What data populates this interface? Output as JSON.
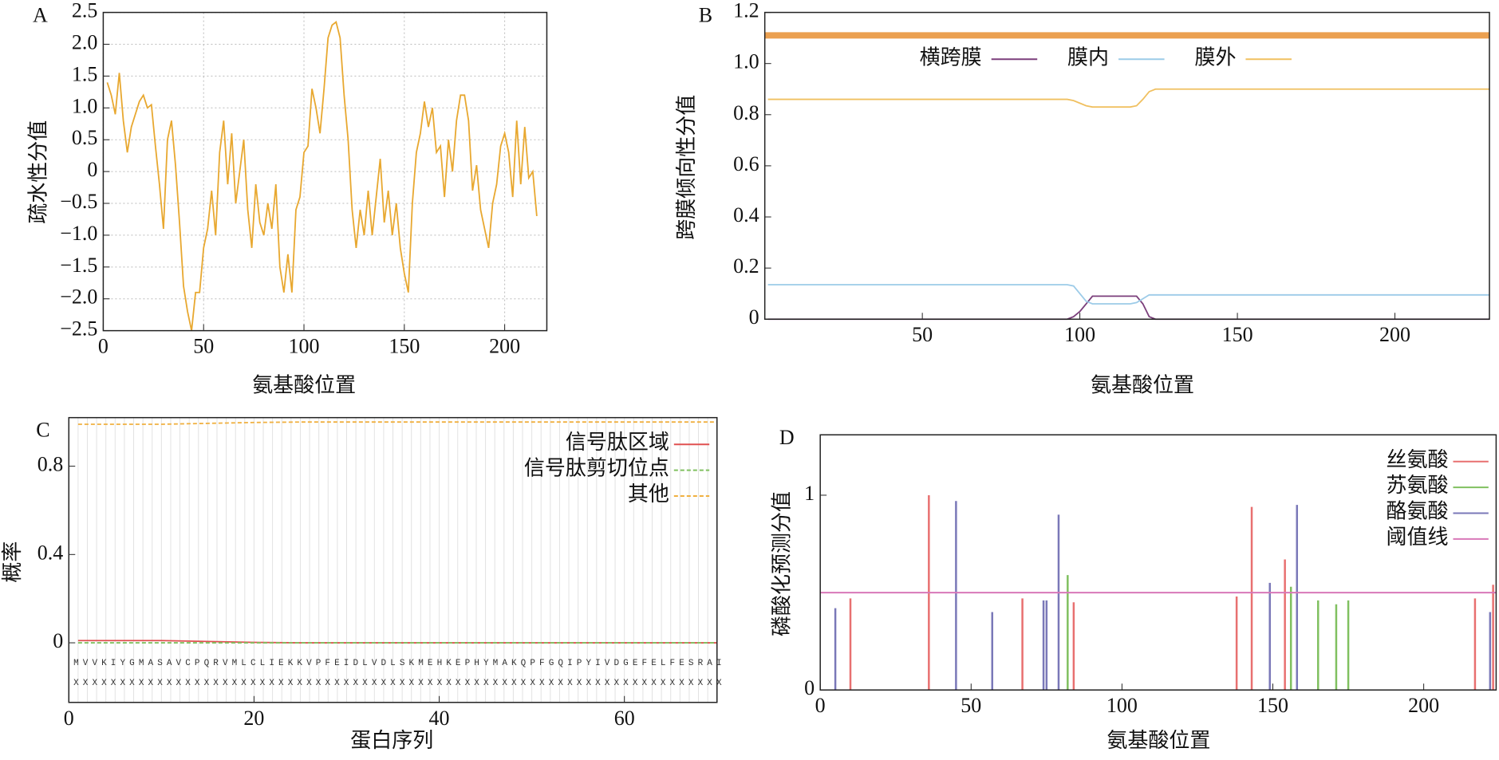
{
  "chart_data": [
    {
      "type": "line",
      "panel_label": "A",
      "xlabel": "氨基酸位置",
      "ylabel": "疏水性分值",
      "color": "#e8a830",
      "grid": true,
      "xlim": [
        0,
        221
      ],
      "ylim": [
        -2.5,
        2.5
      ],
      "xticks": [
        0,
        50,
        100,
        150,
        200
      ],
      "yticks": [
        {
          "value": -2.5,
          "label": "−2.5"
        },
        {
          "value": -2,
          "label": "−2.0"
        },
        {
          "value": -1.5,
          "label": "−1.5"
        },
        {
          "value": -1,
          "label": "−1.0"
        },
        {
          "value": -0.5,
          "label": "−0.5"
        },
        0,
        0.5,
        {
          "value": 1,
          "label": "1.0"
        },
        1.5,
        {
          "value": 2,
          "label": "2.0"
        },
        2.5
      ],
      "x": [
        2,
        4,
        6,
        8,
        10,
        12,
        14,
        16,
        18,
        20,
        22,
        24,
        26,
        28,
        30,
        32,
        34,
        36,
        38,
        40,
        42,
        44,
        46,
        48,
        50,
        52,
        54,
        56,
        58,
        60,
        62,
        64,
        66,
        68,
        70,
        72,
        74,
        76,
        78,
        80,
        82,
        84,
        86,
        88,
        90,
        92,
        94,
        96,
        98,
        100,
        102,
        104,
        106,
        108,
        110,
        112,
        114,
        116,
        118,
        120,
        122,
        124,
        126,
        128,
        130,
        132,
        134,
        136,
        138,
        140,
        142,
        144,
        146,
        148,
        150,
        152,
        154,
        156,
        158,
        160,
        162,
        164,
        166,
        168,
        170,
        172,
        174,
        176,
        178,
        180,
        182,
        184,
        186,
        188,
        190,
        192,
        194,
        196,
        198,
        200,
        202,
        204,
        206,
        208,
        210,
        212,
        214,
        216
      ],
      "values": [
        1.4,
        1.2,
        0.9,
        1.55,
        0.8,
        0.3,
        0.7,
        0.9,
        1.1,
        1.2,
        1.0,
        1.05,
        0.4,
        -0.2,
        -0.9,
        0.5,
        0.8,
        0.1,
        -0.8,
        -1.8,
        -2.2,
        -2.5,
        -1.9,
        -1.9,
        -1.2,
        -0.9,
        -0.3,
        -1.0,
        0.3,
        0.8,
        -0.2,
        0.6,
        -0.5,
        0.0,
        0.5,
        -0.6,
        -1.2,
        -0.2,
        -0.8,
        -1.0,
        -0.5,
        -0.9,
        -0.2,
        -1.5,
        -1.9,
        -1.3,
        -1.9,
        -0.6,
        -0.4,
        0.3,
        0.4,
        1.3,
        1.0,
        0.6,
        1.3,
        2.1,
        2.3,
        2.35,
        2.1,
        1.2,
        0.5,
        -0.6,
        -1.2,
        -0.6,
        -1.0,
        -0.3,
        -1.0,
        -0.4,
        0.2,
        -0.8,
        -0.3,
        -1.0,
        -0.5,
        -1.2,
        -1.6,
        -1.9,
        -0.5,
        0.3,
        0.6,
        1.1,
        0.7,
        1.0,
        0.3,
        0.4,
        -0.4,
        0.5,
        0.0,
        0.8,
        1.2,
        1.2,
        0.8,
        -0.3,
        0.1,
        -0.6,
        -0.9,
        -1.2,
        -0.5,
        -0.2,
        0.4,
        0.6,
        0.3,
        -0.4,
        0.8,
        -0.2,
        0.7,
        -0.1,
        0.0,
        -0.7
      ]
    },
    {
      "type": "line",
      "panel_label": "B",
      "xlabel": "氨基酸位置",
      "ylabel": "跨膜倾向性分值",
      "legend": "upper center",
      "xlim": [
        0,
        230
      ],
      "ylim": [
        0,
        1.2
      ],
      "xticks": [
        50,
        100,
        150,
        200
      ],
      "yticks": [
        0,
        0.2,
        0.4,
        0.6,
        0.8,
        {
          "value": 1,
          "label": "1.0"
        },
        1.2
      ],
      "band": {
        "value": 1.11,
        "color": "#eba050"
      },
      "x": [
        1,
        20,
        40,
        60,
        80,
        96,
        98,
        100,
        102,
        104,
        106,
        108,
        110,
        112,
        114,
        116,
        118,
        120,
        122,
        124,
        126,
        140,
        160,
        180,
        200,
        220,
        230
      ],
      "series": [
        {
          "name": "横跨膜",
          "color": "#7b3f7b",
          "values": [
            0,
            0,
            0,
            0,
            0,
            0,
            0.01,
            0.03,
            0.06,
            0.09,
            0.09,
            0.09,
            0.09,
            0.09,
            0.09,
            0.09,
            0.09,
            0.06,
            0.01,
            0,
            0,
            0,
            0,
            0,
            0,
            0,
            0
          ]
        },
        {
          "name": "膜内",
          "color": "#9ccbe8",
          "values": [
            0.135,
            0.135,
            0.135,
            0.135,
            0.135,
            0.135,
            0.13,
            0.1,
            0.07,
            0.06,
            0.06,
            0.06,
            0.06,
            0.06,
            0.06,
            0.06,
            0.065,
            0.08,
            0.095,
            0.095,
            0.095,
            0.095,
            0.095,
            0.095,
            0.095,
            0.095,
            0.095
          ]
        },
        {
          "name": "膜外",
          "color": "#f0c060",
          "values": [
            0.86,
            0.86,
            0.86,
            0.86,
            0.86,
            0.86,
            0.855,
            0.845,
            0.835,
            0.83,
            0.83,
            0.83,
            0.83,
            0.83,
            0.83,
            0.83,
            0.835,
            0.86,
            0.89,
            0.9,
            0.9,
            0.9,
            0.9,
            0.9,
            0.9,
            0.9,
            0.9
          ]
        }
      ]
    },
    {
      "type": "line",
      "panel_label": "C",
      "xlabel": "蛋白序列",
      "ylabel": "概率",
      "legend": "upper right",
      "xlim": [
        0,
        70
      ],
      "ylim": [
        -0.27,
        1.02
      ],
      "xticks": [
        0,
        20,
        40,
        60
      ],
      "yticks": [
        0,
        0.4,
        0.8
      ],
      "minor_grid_step": 1,
      "sequence": "MVVKIYGMASAVCPQRVMLCLIEKKVPFEIDLVDLSKMEHKEPHYMAKQPFGQIPYIVDGEFELFESRAI",
      "sequence_marks": "XXXXXXXXXXXXXXXXXXXXXXXXXXXXXXXXXXXXXXXXXXXXXXXXXXXXXXXXXXXXXXXXXXXXXX",
      "x": [
        1,
        5,
        10,
        15,
        20,
        25,
        30,
        35,
        40,
        45,
        50,
        55,
        60,
        65,
        70
      ],
      "series": [
        {
          "name": "信号肽区域",
          "color": "#e05050",
          "values": [
            0.01,
            0.01,
            0.01,
            0.006,
            0.002,
            0,
            0,
            0,
            0,
            0,
            0,
            0,
            0,
            0,
            0
          ]
        },
        {
          "name": "信号肽剪切位点",
          "color": "#80c060",
          "dashed": true,
          "values": [
            0,
            0,
            0,
            0,
            0,
            0,
            0,
            0,
            0,
            0,
            0,
            0,
            0,
            0,
            0
          ]
        },
        {
          "name": "其他",
          "color": "#f0b040",
          "dashed": true,
          "values": [
            0.99,
            0.99,
            0.99,
            0.994,
            0.998,
            1,
            1,
            1,
            1,
            1,
            1,
            1,
            1,
            1,
            1
          ]
        }
      ]
    },
    {
      "type": "stem",
      "panel_label": "D",
      "xlabel": "氨基酸位置",
      "ylabel": "磷酸化预测分值",
      "legend": "upper right",
      "xlim": [
        0,
        224
      ],
      "ylim": [
        0,
        1.31
      ],
      "xticks": [
        0,
        50,
        100,
        150,
        200
      ],
      "yticks": [
        0,
        1
      ],
      "series": [
        {
          "name": "丝氨酸",
          "color": "#e87070",
          "x": [
            10,
            36,
            67,
            84,
            138,
            143,
            154,
            217,
            223
          ],
          "values": [
            0.47,
            1.0,
            0.47,
            0.45,
            0.48,
            0.94,
            0.67,
            0.47,
            0.54
          ]
        },
        {
          "name": "苏氨酸",
          "color": "#80c060",
          "x": [
            82,
            156,
            165,
            171,
            175
          ],
          "values": [
            0.59,
            0.53,
            0.46,
            0.44,
            0.46
          ]
        },
        {
          "name": "酪氨酸",
          "color": "#7a78b8",
          "x": [
            5,
            45,
            57,
            74,
            75,
            79,
            149,
            158,
            222
          ],
          "values": [
            0.42,
            0.97,
            0.4,
            0.46,
            0.46,
            0.9,
            0.55,
            0.95,
            0.4
          ]
        }
      ],
      "threshold": {
        "name": "阈值线",
        "value": 0.5,
        "color": "#d878b8"
      }
    }
  ]
}
